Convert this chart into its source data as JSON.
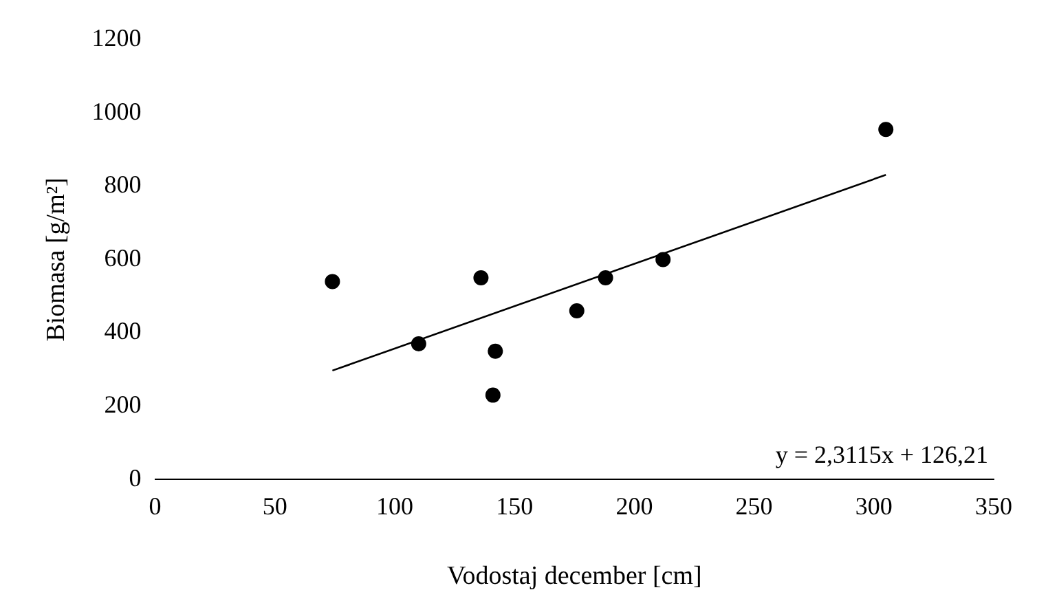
{
  "chart_data": {
    "type": "scatter",
    "xlabel": "Vodostaj december [cm]",
    "ylabel": "Biomasa [g/m²]",
    "xlim": [
      0,
      350
    ],
    "xticks": [
      0,
      50,
      100,
      150,
      200,
      250,
      300,
      350
    ],
    "ylim": [
      0,
      1200
    ],
    "yticks": [
      0,
      200,
      400,
      600,
      800,
      1000,
      1200
    ],
    "grid": false,
    "legend": false,
    "marker": "circle",
    "series": [
      {
        "type": "scatter",
        "color": "#000000",
        "x": [
          74,
          110,
          136,
          142,
          141,
          176,
          188,
          212,
          305
        ],
        "values": [
          540,
          370,
          550,
          350,
          230,
          460,
          550,
          600,
          955
        ]
      },
      {
        "type": "line",
        "color": "#000000",
        "line_style": "solid",
        "marker": "none",
        "x": [
          74,
          305
        ],
        "values": [
          297,
          831
        ]
      }
    ],
    "annotations": [
      "y = 2,3115x + 126,21"
    ]
  }
}
